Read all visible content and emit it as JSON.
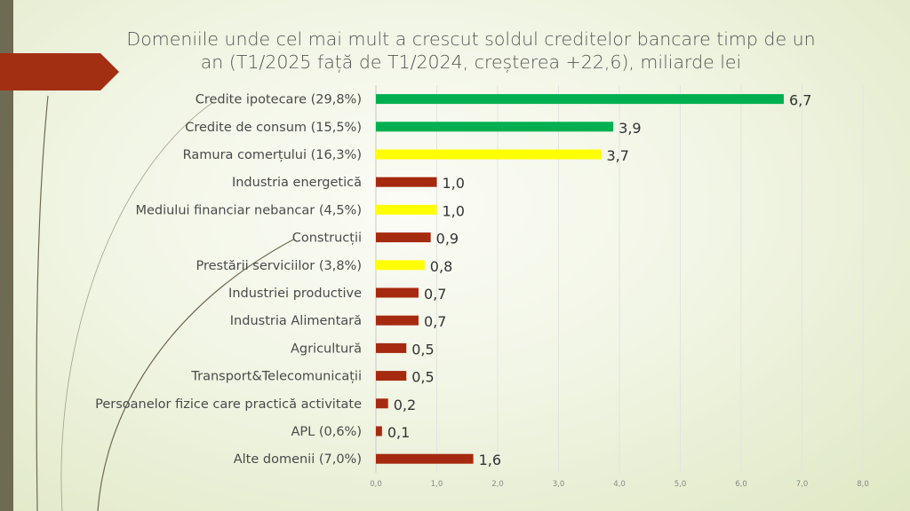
{
  "title": "Domeniile unde cel mai mult a crescut soldul creditelor bancare timp de un an (T1/2025 față de T1/2024, creșterea +22,6), miliarde lei",
  "colors": {
    "green": "#00b050",
    "yellow": "#ffff00",
    "red": "#a52a0f"
  },
  "chart_data": {
    "type": "bar",
    "orientation": "horizontal",
    "title": "Domeniile unde cel mai mult a crescut soldul creditelor bancare timp de un an (T1/2025 față de T1/2024, creșterea +22,6), miliarde lei",
    "categories": [
      "Credite ipotecare (29,8%)",
      "Credite de consum (15,5%)",
      "Ramura comerțului (16,3%)",
      "Industria energetică",
      "Mediului financiar nebancar (4,5%)",
      "Construcții",
      "Prestării serviciilor (3,8%)",
      "Industriei productive",
      "Industria Alimentară",
      "Agricultură",
      "Transport&Telecomunicații",
      "Persoanelor fizice care practică activitate",
      "APL (0,6%)",
      "Alte domenii (7,0%)"
    ],
    "values": [
      6.7,
      3.9,
      3.7,
      1.0,
      1.0,
      0.9,
      0.8,
      0.7,
      0.7,
      0.5,
      0.5,
      0.2,
      0.1,
      1.6
    ],
    "value_labels": [
      "6,7",
      "3,9",
      "3,7",
      "1,0",
      "1,0",
      "0,9",
      "0,8",
      "0,7",
      "0,7",
      "0,5",
      "0,5",
      "0,2",
      "0,1",
      "1,6"
    ],
    "bar_colors": [
      "green",
      "green",
      "yellow",
      "red",
      "yellow",
      "red",
      "yellow",
      "red",
      "red",
      "red",
      "red",
      "red",
      "red",
      "red"
    ],
    "xlim": [
      0,
      8
    ],
    "xticks": [
      "0,0",
      "1,0",
      "2,0",
      "3,0",
      "4,0",
      "5,0",
      "6,0",
      "7,0",
      "8,0"
    ],
    "grid": true,
    "xlabel": "",
    "ylabel": ""
  }
}
